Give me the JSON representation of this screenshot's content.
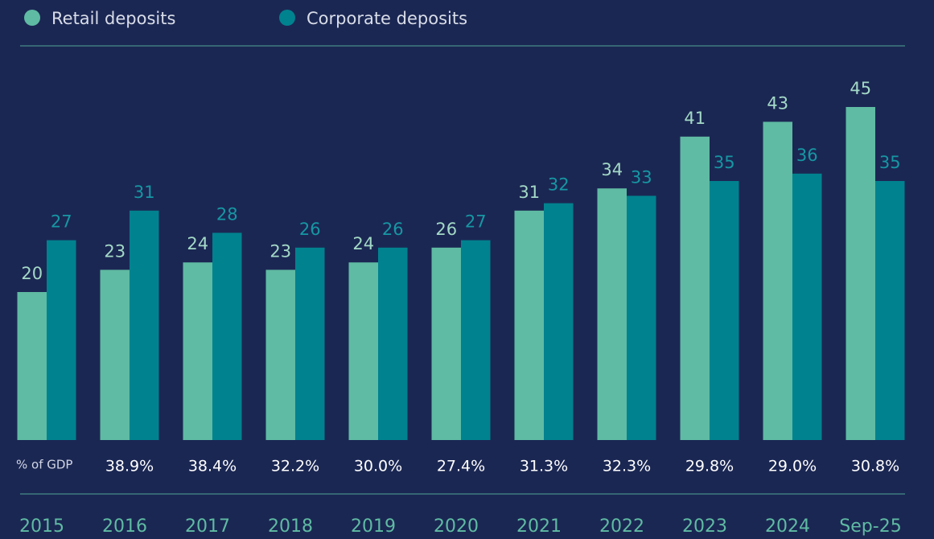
{
  "chart_data": {
    "type": "bar",
    "categories": [
      "2015",
      "2016",
      "2017",
      "2018",
      "2019",
      "2020",
      "2021",
      "2022",
      "2023",
      "2024",
      "Sep-25"
    ],
    "series": [
      {
        "name": "Retail deposits",
        "color": "#5fbba3",
        "label_color": "#a3d9c6",
        "values": [
          20,
          23,
          24,
          23,
          24,
          26,
          31,
          34,
          41,
          43,
          45
        ]
      },
      {
        "name": "Corporate deposits",
        "color": "#00828f",
        "label_color": "#1697a3",
        "values": [
          27,
          31,
          28,
          26,
          26,
          27,
          32,
          33,
          35,
          36,
          35
        ]
      }
    ],
    "gdp_share": {
      "label": "% of GDP",
      "values": [
        null,
        38.9,
        38.4,
        32.2,
        30.0,
        27.4,
        31.3,
        32.3,
        29.8,
        29.0,
        30.8
      ],
      "value_labels": [
        null,
        "38.9%",
        "38.4%",
        "32.2%",
        "30.0%",
        "27.4%",
        "31.3%",
        "32.3%",
        "29.8%",
        "29.0%",
        "30.8%"
      ]
    },
    "legend": "top-left"
  }
}
